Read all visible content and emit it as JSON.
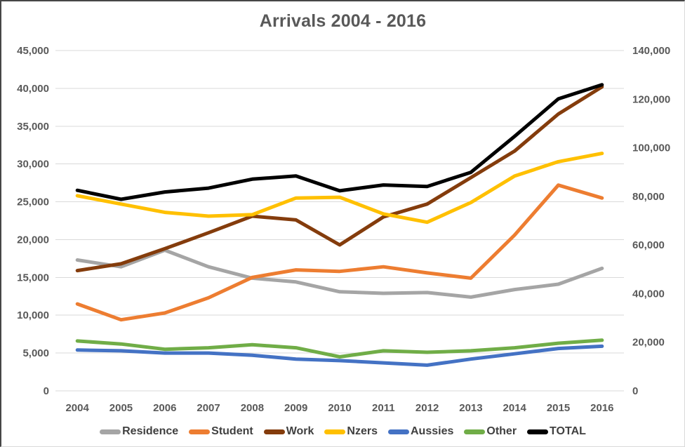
{
  "title": "Arrivals 2004 - 2016",
  "chart_data": {
    "type": "line",
    "title": "Arrivals 2004 - 2016",
    "categories": [
      "2004",
      "2005",
      "2006",
      "2007",
      "2008",
      "2009",
      "2010",
      "2011",
      "2012",
      "2013",
      "2014",
      "2015",
      "2016"
    ],
    "left_axis": {
      "min": 0,
      "max": 45000,
      "step": 5000,
      "tick_labels": [
        "0",
        "5,000",
        "10,000",
        "15,000",
        "20,000",
        "25,000",
        "30,000",
        "35,000",
        "40,000",
        "45,000"
      ]
    },
    "right_axis": {
      "min": 0,
      "max": 140000,
      "step": 20000,
      "tick_labels": [
        "0",
        "20,000",
        "40,000",
        "60,000",
        "80,000",
        "100,000",
        "120,000",
        "140,000"
      ]
    },
    "grid": true,
    "gridline_color": "#D9D9D9",
    "legend_position": "bottom",
    "series": [
      {
        "name": "Residence",
        "color": "#A5A5A5",
        "axis": "left",
        "values": [
          17300,
          16400,
          18600,
          16400,
          14900,
          14400,
          13100,
          12900,
          13000,
          12400,
          13400,
          14100,
          16200
        ]
      },
      {
        "name": "Student",
        "color": "#ED7D31",
        "axis": "left",
        "values": [
          11500,
          9400,
          10300,
          12300,
          15000,
          16000,
          15800,
          16400,
          15600,
          14900,
          20600,
          27200,
          25500
        ]
      },
      {
        "name": "Work",
        "color": "#843C0C",
        "axis": "left",
        "values": [
          15900,
          16800,
          18800,
          20900,
          23100,
          22600,
          19300,
          23000,
          24700,
          28200,
          31700,
          36600,
          40200
        ]
      },
      {
        "name": "Nzers",
        "color": "#FFC000",
        "axis": "left",
        "values": [
          25800,
          24700,
          23600,
          23100,
          23300,
          25500,
          25600,
          23400,
          22300,
          24900,
          28400,
          30300,
          31400
        ]
      },
      {
        "name": "Aussies",
        "color": "#4472C4",
        "axis": "left",
        "values": [
          5400,
          5300,
          5000,
          5000,
          4700,
          4200,
          4000,
          3700,
          3400,
          4200,
          4900,
          5600,
          5900
        ]
      },
      {
        "name": "Other",
        "color": "#70AD47",
        "axis": "left",
        "values": [
          6600,
          6200,
          5500,
          5700,
          6100,
          5700,
          4500,
          5300,
          5100,
          5300,
          5700,
          6300,
          6700
        ]
      },
      {
        "name": "TOTAL",
        "color": "#000000",
        "axis": "right",
        "values": [
          82500,
          78800,
          81800,
          83400,
          87100,
          88400,
          82300,
          84700,
          84100,
          89900,
          104700,
          120100,
          125900
        ]
      }
    ]
  },
  "colors": {
    "title_text": "#595959",
    "axis_text": "#595959",
    "legend_text": "#404040",
    "gridline": "#D9D9D9",
    "background": "#FFFFFF"
  }
}
